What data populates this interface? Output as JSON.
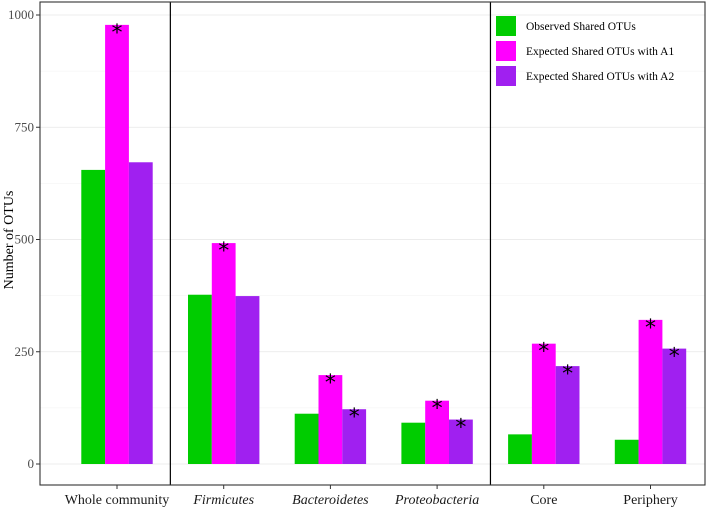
{
  "chart_data": {
    "type": "bar",
    "title": "",
    "xlabel": "",
    "ylabel": "Number of OTUs",
    "ylim": [
      0,
      1000
    ],
    "yticks": [
      0,
      250,
      500,
      750,
      1000
    ],
    "categories": [
      "Whole community",
      "Firmicutes",
      "Bacteroidetes",
      "Proteobacteria",
      "Core",
      "Periphery"
    ],
    "italic_categories": [
      "Firmicutes",
      "Bacteroidetes",
      "Proteobacteria"
    ],
    "series": [
      {
        "name": "Observed Shared OTUs",
        "color": "#00cc00",
        "values": [
          655,
          377,
          112,
          92,
          66,
          54
        ],
        "significant": [
          false,
          false,
          false,
          false,
          false,
          false
        ]
      },
      {
        "name": "Expected Shared OTUs with A1",
        "color": "#ff00ff",
        "values": [
          978,
          492,
          198,
          141,
          268,
          321
        ],
        "significant": [
          true,
          true,
          true,
          true,
          true,
          true
        ]
      },
      {
        "name": "Expected Shared OTUs with A2",
        "color": "#a020f0",
        "values": [
          672,
          374,
          122,
          99,
          218,
          257
        ],
        "significant": [
          false,
          false,
          true,
          true,
          true,
          true
        ]
      }
    ],
    "significance_marker": "*",
    "grid": true,
    "group_separators_after": [
      "Whole community",
      "Proteobacteria"
    ],
    "legend_position": "top-right"
  }
}
